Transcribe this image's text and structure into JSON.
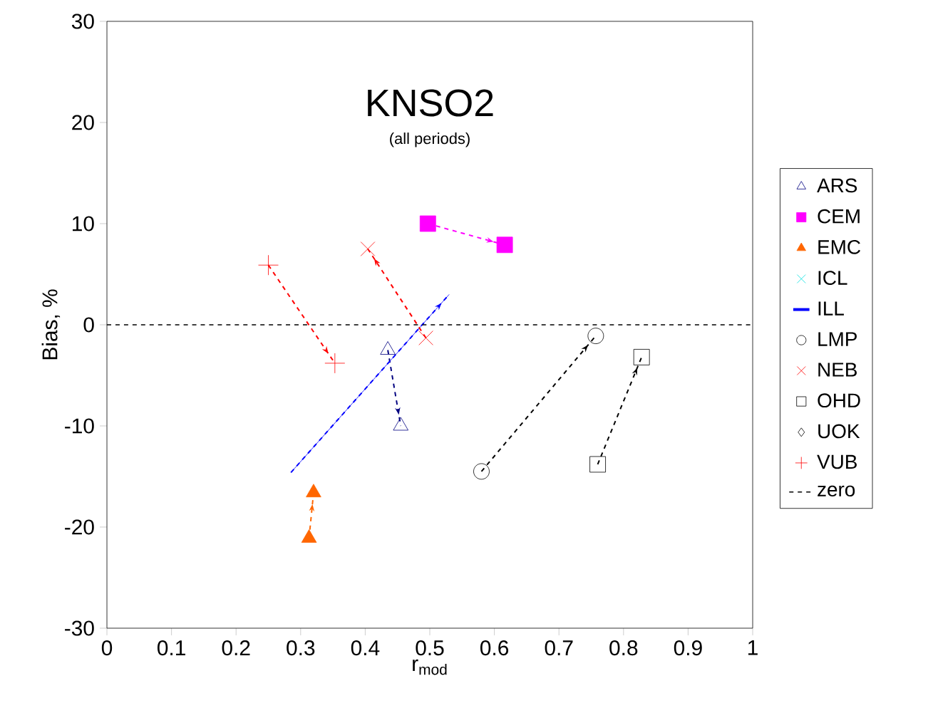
{
  "chart_data": {
    "type": "line",
    "title": "KNSO2",
    "subtitle": "(all periods)",
    "xlabel": "r$_{mod}$",
    "ylabel": "Bias, %",
    "xlim": [
      0,
      1
    ],
    "xticks": [
      0,
      0.1,
      0.2,
      0.3,
      0.4,
      0.5,
      0.6,
      0.7,
      0.8,
      0.9,
      1
    ],
    "ylim": [
      -30,
      30
    ],
    "yticks": [
      -30,
      -20,
      -10,
      0,
      10,
      20,
      30
    ],
    "grid": false,
    "legend": "right",
    "line_style": "dashed",
    "ref_lines": [
      {
        "axis": "y",
        "value": 0,
        "label": "zero",
        "color": "#000000",
        "line_style": "dashed"
      }
    ],
    "series": [
      {
        "name": "ARS",
        "color": "#000080",
        "marker": "triangle",
        "x": [
          0.435,
          0.455
        ],
        "values": [
          -2.5,
          -10
        ]
      },
      {
        "name": "CEM",
        "color": "#ff00ff",
        "marker": "square-filled",
        "x": [
          0.497,
          0.616
        ],
        "values": [
          10,
          7.9
        ]
      },
      {
        "name": "EMC",
        "color": "#ff6600",
        "marker": "triangle-filled",
        "x": [
          0.313,
          0.32
        ],
        "values": [
          -21.1,
          -16.6
        ]
      },
      {
        "name": "ICL",
        "color": "#00e0e0",
        "marker": "cross"
      },
      {
        "name": "ILL",
        "color": "#0000ff",
        "marker": "none",
        "x": [
          0.285,
          0.53
        ],
        "values": [
          -14.6,
          3
        ]
      },
      {
        "name": "LMP",
        "color": "#000000",
        "marker": "circle",
        "x": [
          0.58,
          0.757
        ],
        "values": [
          -14.5,
          -1.1
        ]
      },
      {
        "name": "NEB",
        "color": "#ff0000",
        "marker": "cross",
        "x": [
          0.494,
          0.404
        ],
        "values": [
          -1.3,
          7.5
        ]
      },
      {
        "name": "OHD",
        "color": "#000000",
        "marker": "square",
        "x": [
          0.76,
          0.828
        ],
        "values": [
          -13.8,
          -3.2
        ]
      },
      {
        "name": "UOK",
        "color": "#000000",
        "marker": "diamond"
      },
      {
        "name": "VUB",
        "color": "#ff0000",
        "marker": "plus",
        "x": [
          0.25,
          0.353
        ],
        "values": [
          5.9,
          -3.8
        ]
      }
    ]
  }
}
